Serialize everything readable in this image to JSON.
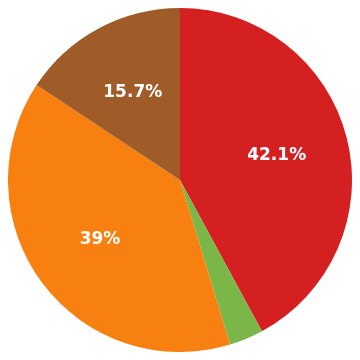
{
  "chart_data": {
    "type": "pie",
    "values": [
      42.1,
      3.2,
      39.0,
      15.7
    ],
    "value_labels": [
      "42.1%",
      null,
      "39%",
      "15.7%"
    ],
    "colors": [
      "#d42020",
      "#7ab648",
      "#f78010",
      "#a05c28"
    ],
    "data_labels": true
  }
}
